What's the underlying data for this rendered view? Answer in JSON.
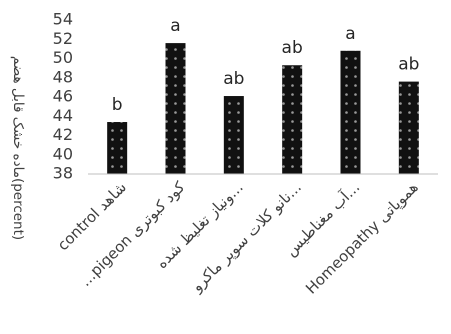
{
  "chart_data": {
    "type": "bar",
    "title": "",
    "xlabel": "",
    "ylabel": "ماده خشک قابل هضم(percent)",
    "ylim": [
      38,
      54
    ],
    "yticks": [
      38,
      40,
      42,
      44,
      46,
      48,
      50,
      52,
      54
    ],
    "grid": false,
    "legend": "none",
    "categories": [
      "control شاهد",
      "...pigeon کود کبوتری",
      "ونیاز تغلیظ شده...",
      "نانو کلات سوپر ماکرو...",
      "آب مغناطیس...",
      "Homeopathy هموپاتی"
    ],
    "values": [
      43.4,
      51.6,
      46.1,
      49.3,
      50.8,
      47.6
    ],
    "significance_labels": [
      "b",
      "a",
      "ab",
      "ab",
      "a",
      "ab"
    ],
    "colors": {
      "bar": "#111111",
      "dot": "#9a9a9a",
      "text": "#404040"
    }
  }
}
